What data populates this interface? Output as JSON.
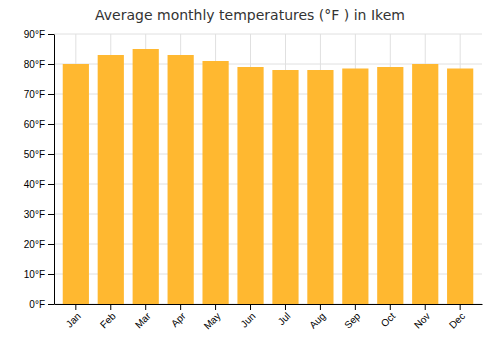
{
  "chart_data": {
    "type": "bar",
    "title": "Average monthly temperatures (°F ) in Ikem",
    "categories": [
      "Jan",
      "Feb",
      "Mar",
      "Apr",
      "May",
      "Jun",
      "Jul",
      "Aug",
      "Sep",
      "Oct",
      "Nov",
      "Dec"
    ],
    "values": [
      80,
      83,
      85,
      83,
      81,
      79,
      78,
      78,
      78.5,
      79,
      80,
      78.5
    ],
    "color": "#FFB830",
    "ylim": [
      0,
      90
    ],
    "yticks": [
      {
        "value": 0,
        "label": "0°F"
      },
      {
        "value": 10,
        "label": "10°F"
      },
      {
        "value": 20,
        "label": "20°F"
      },
      {
        "value": 30,
        "label": "30°F"
      },
      {
        "value": 40,
        "label": "40°F"
      },
      {
        "value": 50,
        "label": "50°F"
      },
      {
        "value": 60,
        "label": "60°F"
      },
      {
        "value": 70,
        "label": "70°F"
      },
      {
        "value": 80,
        "label": "80°F"
      },
      {
        "value": 90,
        "label": "90°F"
      }
    ],
    "grid": true
  }
}
